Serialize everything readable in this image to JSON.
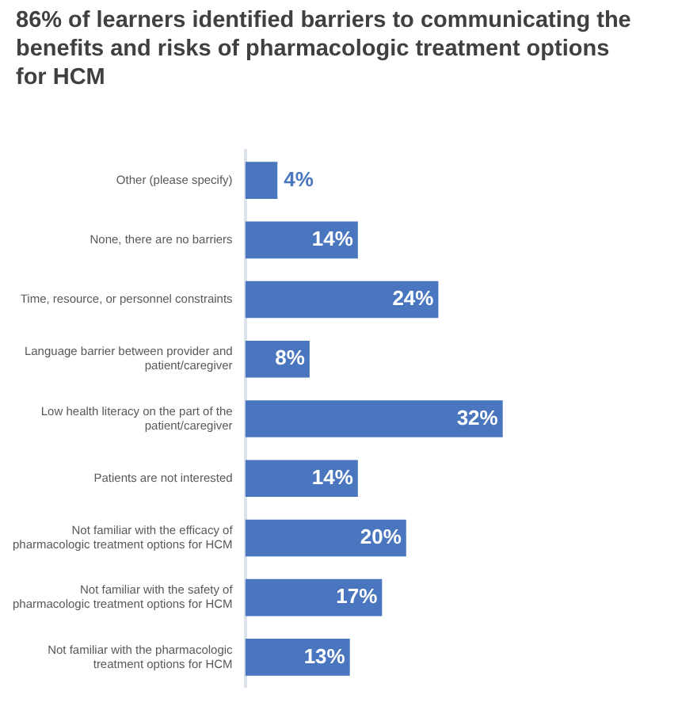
{
  "chart_data": {
    "type": "bar",
    "orientation": "horizontal",
    "title": "86% of learners identified barriers to communicating the benefits and risks of pharmacologic treatment options for HCM",
    "categories": [
      "Other (please specify)",
      "None, there are no barriers",
      "Time, resource, or personnel constraints",
      "Language barrier between provider and patient/caregiver",
      "Low health literacy on the part of the patient/caregiver",
      "Patients are not interested",
      "Not familiar with the efficacy of pharmacologic treatment options for HCM",
      "Not familiar with the safety of pharmacologic treatment options for HCM",
      "Not familiar with the pharmacologic treatment options for HCM"
    ],
    "values": [
      4,
      14,
      24,
      8,
      32,
      14,
      20,
      17,
      13
    ],
    "value_labels": [
      "4%",
      "14%",
      "24%",
      "8%",
      "32%",
      "14%",
      "20%",
      "17%",
      "13%"
    ],
    "color": "#4a76bf",
    "grid": false,
    "legend": false,
    "tick_labels": "y"
  }
}
